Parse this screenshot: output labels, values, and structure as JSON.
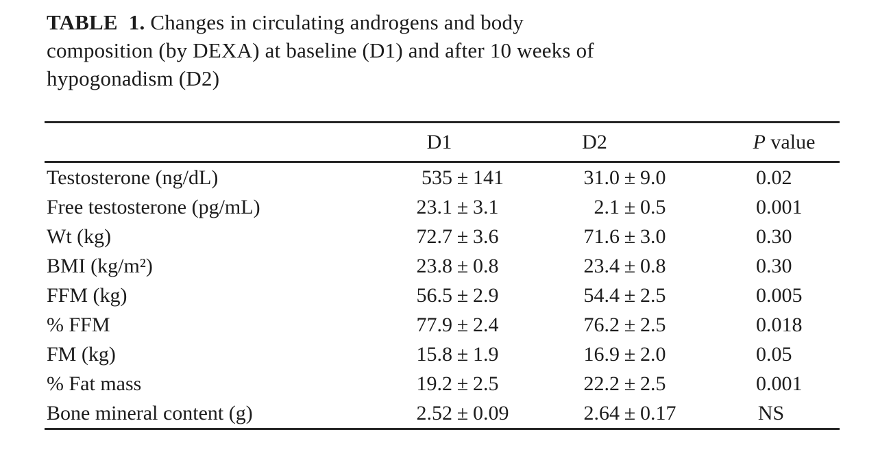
{
  "caption": {
    "label": "TABLE 1.",
    "line1": "Changes in circulating androgens and body",
    "line2": "composition (by DEXA) at baseline (D1) and after 10 weeks of",
    "line3": "hypogonadism (D2)"
  },
  "table": {
    "pm": "±",
    "headers": {
      "d1": "D1",
      "d2": "D2",
      "p_italic": "P",
      "p_rest": "value"
    },
    "rows": [
      {
        "label": "Testosterone (ng/dL)",
        "d1": {
          "mean": "535",
          "sd": "141"
        },
        "d2": {
          "mean": "31.0",
          "sd": "9.0"
        },
        "p": "0.02"
      },
      {
        "label": "Free testosterone (pg/mL)",
        "d1": {
          "mean": "23.1",
          "sd": "3.1"
        },
        "d2": {
          "mean": "2.1",
          "sd": "0.5"
        },
        "p": "0.001"
      },
      {
        "label": "Wt (kg)",
        "d1": {
          "mean": "72.7",
          "sd": "3.6"
        },
        "d2": {
          "mean": "71.6",
          "sd": "3.0"
        },
        "p": "0.30"
      },
      {
        "label": "BMI (kg/m²)",
        "d1": {
          "mean": "23.8",
          "sd": "0.8"
        },
        "d2": {
          "mean": "23.4",
          "sd": "0.8"
        },
        "p": "0.30"
      },
      {
        "label": "FFM (kg)",
        "d1": {
          "mean": "56.5",
          "sd": "2.9"
        },
        "d2": {
          "mean": "54.4",
          "sd": "2.5"
        },
        "p": "0.005"
      },
      {
        "label": "% FFM",
        "d1": {
          "mean": "77.9",
          "sd": "2.4"
        },
        "d2": {
          "mean": "76.2",
          "sd": "2.5"
        },
        "p": "0.018"
      },
      {
        "label": "FM (kg)",
        "d1": {
          "mean": "15.8",
          "sd": "1.9"
        },
        "d2": {
          "mean": "16.9",
          "sd": "2.0"
        },
        "p": "0.05"
      },
      {
        "label": "% Fat mass",
        "d1": {
          "mean": "19.2",
          "sd": "2.5"
        },
        "d2": {
          "mean": "22.2",
          "sd": "2.5"
        },
        "p": "0.001"
      },
      {
        "label": "Bone mineral content (g)",
        "d1": {
          "mean": "2.52",
          "sd": "0.09"
        },
        "d2": {
          "mean": "2.64",
          "sd": "0.17"
        },
        "p": "NS"
      }
    ]
  }
}
